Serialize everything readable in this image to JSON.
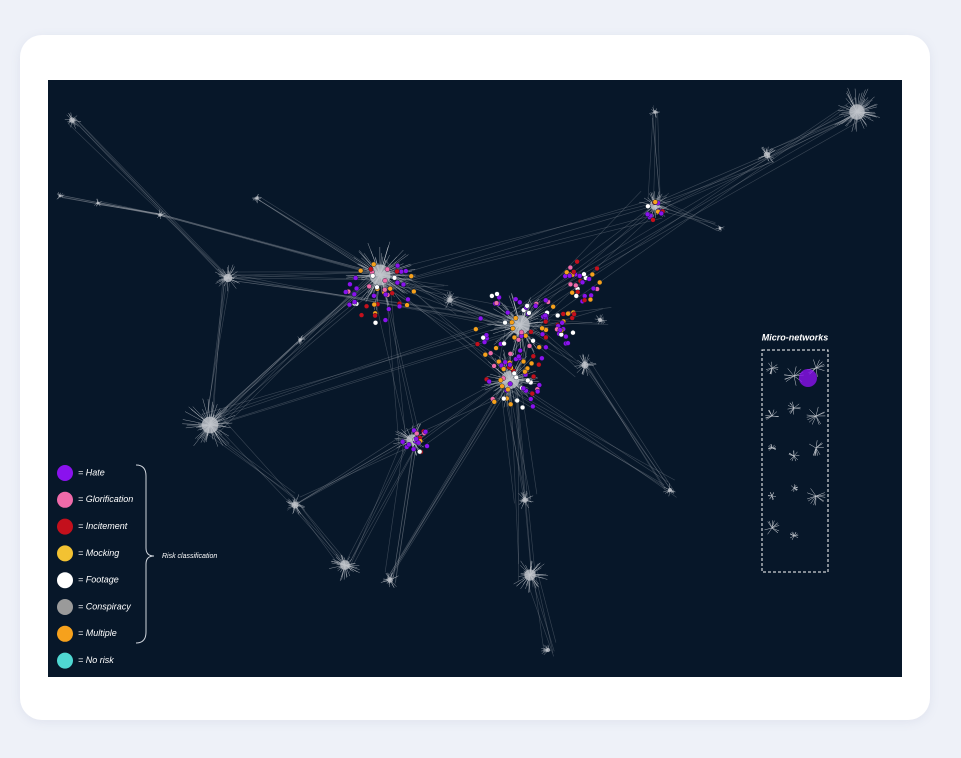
{
  "legend": {
    "items": [
      {
        "label": "= Hate",
        "color": "#8a12ee"
      },
      {
        "label": "= Glorification",
        "color": "#ef6aa9"
      },
      {
        "label": "= Incitement",
        "color": "#c3101c"
      },
      {
        "label": "= Mocking",
        "color": "#f3c232"
      },
      {
        "label": "= Footage",
        "color": "#ffffff"
      },
      {
        "label": "= Conspiracy",
        "color": "#9a9a9a"
      },
      {
        "label": "= Multiple",
        "color": "#f6a11c"
      },
      {
        "label": "= No risk",
        "color": "#4fd8d3"
      }
    ],
    "group_label": "Risk classification"
  },
  "micro_networks": {
    "title": "Micro-networks"
  }
}
